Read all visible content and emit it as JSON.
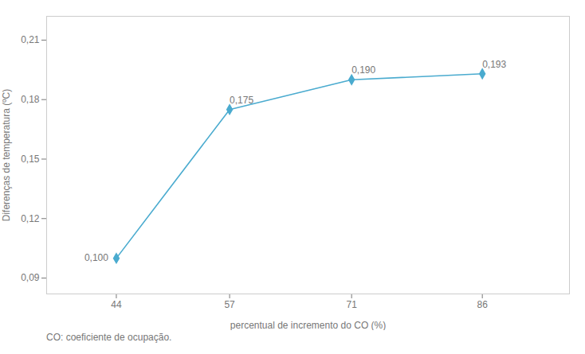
{
  "chart_data": {
    "type": "line",
    "x": [
      44,
      57,
      71,
      86
    ],
    "values": [
      0.1,
      0.175,
      0.19,
      0.193
    ],
    "value_labels": [
      "0,100",
      "0,175",
      "0,190",
      "0,193"
    ],
    "data_labels": true,
    "xlabel": "percentual de incremento do CO (%)",
    "ylabel": "Diferenças de temperatura (ºC)",
    "footnote": "CO: coeficiente de ocupação.",
    "xlim": [
      36,
      96
    ],
    "xticks": [
      44,
      57,
      71,
      86
    ],
    "ylim": [
      0.082,
      0.222
    ],
    "yticks": [
      {
        "value": 0.09,
        "label": "0,09"
      },
      {
        "value": 0.12,
        "label": "0,12"
      },
      {
        "value": 0.15,
        "label": "0,15"
      },
      {
        "value": 0.18,
        "label": "0,18"
      },
      {
        "value": 0.21,
        "label": "0,21"
      }
    ],
    "color": "#4aabcf",
    "marker": "diamond",
    "grid": false
  }
}
